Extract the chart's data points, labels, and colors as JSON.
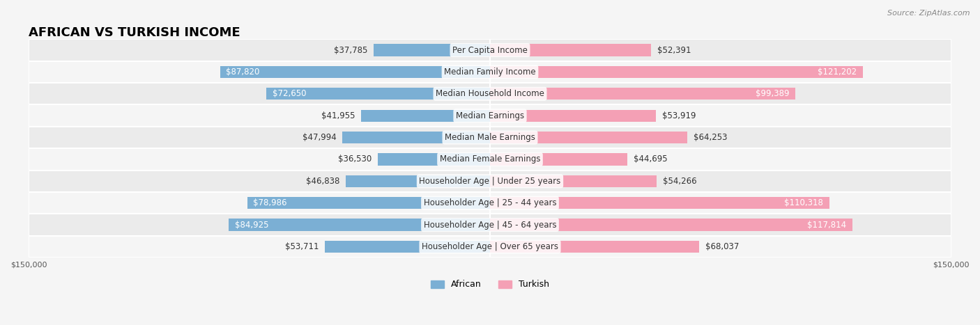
{
  "title": "AFRICAN VS TURKISH INCOME",
  "source": "Source: ZipAtlas.com",
  "categories": [
    "Per Capita Income",
    "Median Family Income",
    "Median Household Income",
    "Median Earnings",
    "Median Male Earnings",
    "Median Female Earnings",
    "Householder Age | Under 25 years",
    "Householder Age | 25 - 44 years",
    "Householder Age | 45 - 64 years",
    "Householder Age | Over 65 years"
  ],
  "african_values": [
    37785,
    87820,
    72650,
    41955,
    47994,
    36530,
    46838,
    78986,
    84925,
    53711
  ],
  "turkish_values": [
    52391,
    121202,
    99389,
    53919,
    64253,
    44695,
    54266,
    110318,
    117814,
    68037
  ],
  "african_labels": [
    "$37,785",
    "$87,820",
    "$72,650",
    "$41,955",
    "$47,994",
    "$36,530",
    "$46,838",
    "$78,986",
    "$84,925",
    "$53,711"
  ],
  "turkish_labels": [
    "$52,391",
    "$121,202",
    "$99,389",
    "$53,919",
    "$64,253",
    "$44,695",
    "$54,266",
    "$110,318",
    "$117,814",
    "$68,037"
  ],
  "african_color": "#7bafd4",
  "turkish_color": "#f4a0b5",
  "african_color_dark": "#6699cc",
  "turkish_color_dark": "#f08090",
  "max_value": 150000,
  "bg_color": "#f5f5f5",
  "row_bg_color": "#ebebeb",
  "row_bg_color2": "#f5f5f5",
  "title_fontsize": 13,
  "label_fontsize": 8.5,
  "cat_fontsize": 8.5,
  "legend_fontsize": 9,
  "axis_label_fontsize": 8
}
